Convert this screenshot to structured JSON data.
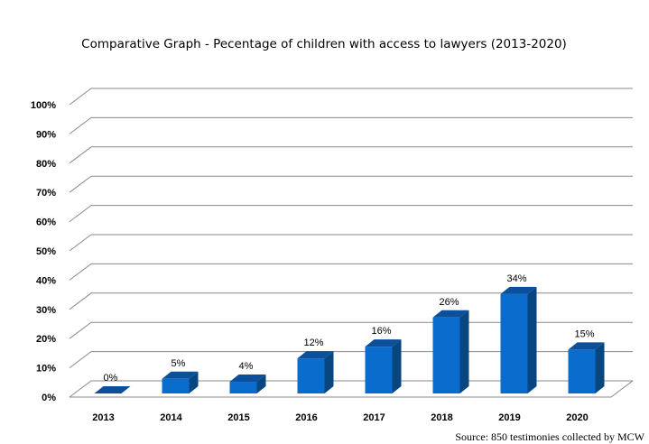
{
  "chart_data": {
    "type": "bar",
    "title": "Comparative Graph - Pecentage of children with access to lawyers  (2013-2020)",
    "categories": [
      "2013",
      "2014",
      "2015",
      "2016",
      "2017",
      "2018",
      "2019",
      "2020"
    ],
    "values": [
      0,
      5,
      4,
      12,
      16,
      26,
      34,
      15
    ],
    "data_labels": [
      "0%",
      "5%",
      "4%",
      "12%",
      "16%",
      "26%",
      "34%",
      "15%"
    ],
    "y_ticks": [
      "0%",
      "10%",
      "20%",
      "30%",
      "40%",
      "50%",
      "60%",
      "70%",
      "80%",
      "90%",
      "100%"
    ],
    "ylim": [
      0,
      100
    ],
    "grid": true,
    "legend": "none",
    "three_d": true,
    "source": "Source: 850 testimonies collected by MCW",
    "colors": {
      "bar_front": "#0a6ccc",
      "bar_top": "#0c4f9a",
      "bar_side": "#08467f",
      "grid": "#8a8a8a"
    }
  }
}
